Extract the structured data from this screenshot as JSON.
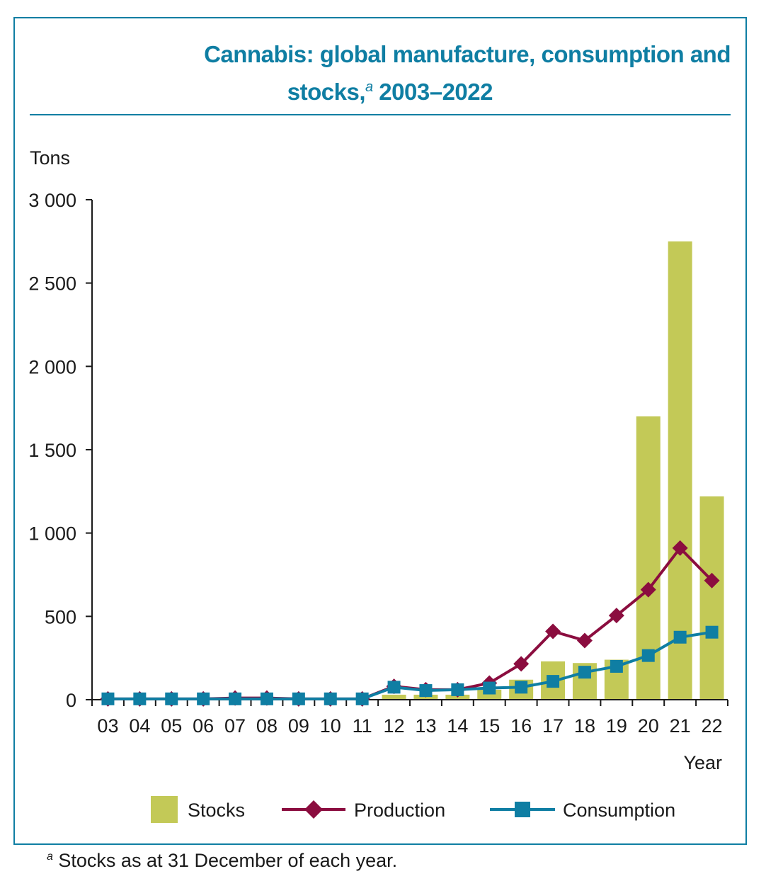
{
  "title": {
    "line1": "Cannabis: global manufacture, consumption and",
    "line2": "stocks,",
    "sup": "a",
    "line2_tail": " 2003–2022"
  },
  "footnote": {
    "sup": "a",
    "text": " Stocks as at 31 December of each year."
  },
  "colors": {
    "frame": "#0f7ea3",
    "stocks": "#c3c957",
    "production": "#8b0d3f",
    "consumption": "#0f7ea3",
    "text": "#1a1a1a"
  },
  "chart_data": {
    "type": "bar+line",
    "ylabel": "Tons",
    "xlabel": "Year",
    "ylim": [
      0,
      3000
    ],
    "yticks": [
      0,
      500,
      1000,
      1500,
      2000,
      2500,
      3000
    ],
    "ytick_labels": [
      "0",
      "500",
      "1 000",
      "1 500",
      "2 000",
      "2 500",
      "3 000"
    ],
    "categories": [
      "03",
      "04",
      "05",
      "06",
      "07",
      "08",
      "09",
      "10",
      "11",
      "12",
      "13",
      "14",
      "15",
      "16",
      "17",
      "18",
      "19",
      "20",
      "21",
      "22"
    ],
    "legend_position": "bottom",
    "series": [
      {
        "name": "Stocks",
        "type": "bar",
        "values": [
          5,
          5,
          5,
          5,
          5,
          5,
          5,
          5,
          5,
          30,
          30,
          30,
          60,
          120,
          230,
          220,
          240,
          1700,
          2750,
          1220
        ]
      },
      {
        "name": "Production",
        "type": "line",
        "marker": "diamond",
        "values": [
          5,
          5,
          5,
          5,
          10,
          10,
          5,
          5,
          5,
          80,
          60,
          60,
          100,
          215,
          410,
          355,
          505,
          660,
          910,
          715
        ]
      },
      {
        "name": "Consumption",
        "type": "line",
        "marker": "square",
        "values": [
          5,
          5,
          5,
          5,
          5,
          5,
          5,
          5,
          5,
          75,
          55,
          60,
          70,
          75,
          110,
          165,
          200,
          265,
          375,
          405
        ]
      }
    ]
  }
}
